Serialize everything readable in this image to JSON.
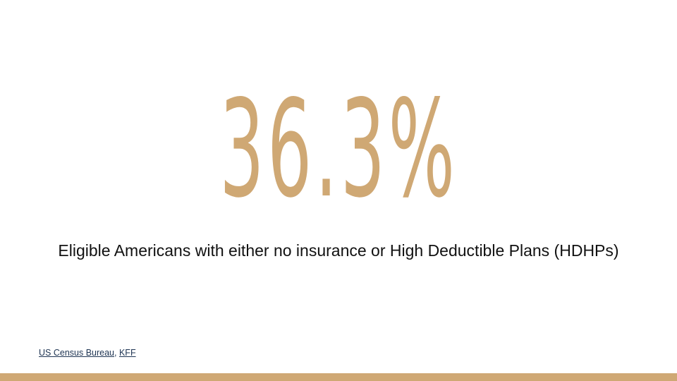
{
  "slide": {
    "stat_value": "36.3%",
    "caption": "Eligible Americans with either no insurance or High Deductible Plans (HDHPs)",
    "sources": {
      "links": [
        {
          "label": "US Census Bureau"
        },
        {
          "label": "KFF"
        }
      ],
      "separator": ", "
    }
  },
  "colors": {
    "accent": "#cfa874",
    "background": "#ffffff",
    "text": "#111111",
    "link": "#1f3553"
  }
}
